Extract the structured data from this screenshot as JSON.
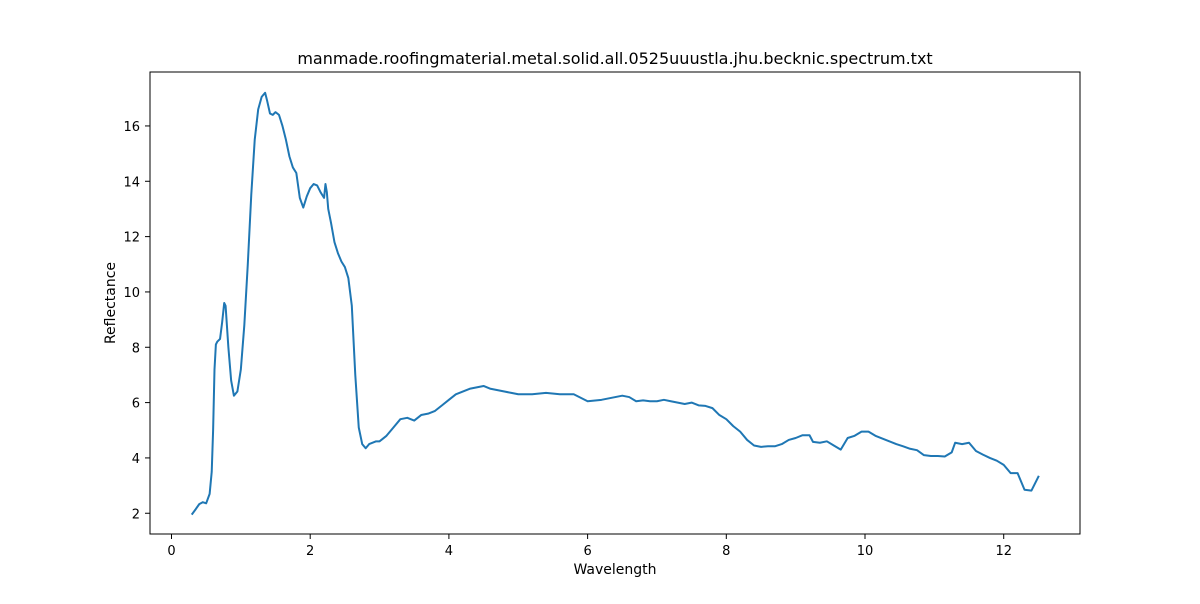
{
  "chart_data": {
    "type": "line",
    "title": "manmade.roofingmaterial.metal.solid.all.0525uuustla.jhu.becknic.spectrum.txt",
    "xlabel": "Wavelength",
    "ylabel": "Reflectance",
    "xlim": [
      -0.31,
      13.1
    ],
    "ylim": [
      1.25,
      17.95
    ],
    "xticks": [
      0,
      2,
      4,
      6,
      8,
      10,
      12
    ],
    "yticks": [
      2,
      4,
      6,
      8,
      10,
      12,
      14,
      16
    ],
    "grid": false,
    "series": [
      {
        "color": "#1f77b4",
        "x": [
          0.3,
          0.35,
          0.4,
          0.45,
          0.5,
          0.55,
          0.58,
          0.6,
          0.62,
          0.64,
          0.66,
          0.7,
          0.73,
          0.76,
          0.78,
          0.82,
          0.86,
          0.9,
          0.95,
          1.0,
          1.05,
          1.1,
          1.15,
          1.2,
          1.25,
          1.3,
          1.35,
          1.38,
          1.42,
          1.46,
          1.5,
          1.55,
          1.6,
          1.65,
          1.7,
          1.75,
          1.8,
          1.85,
          1.9,
          1.95,
          2.0,
          2.05,
          2.1,
          2.15,
          2.2,
          2.22,
          2.24,
          2.26,
          2.3,
          2.35,
          2.4,
          2.45,
          2.5,
          2.55,
          2.6,
          2.65,
          2.7,
          2.75,
          2.8,
          2.85,
          2.9,
          2.95,
          3.0,
          3.1,
          3.2,
          3.3,
          3.4,
          3.5,
          3.6,
          3.7,
          3.8,
          3.9,
          4.0,
          4.1,
          4.2,
          4.3,
          4.4,
          4.5,
          4.6,
          4.7,
          4.8,
          4.9,
          5.0,
          5.2,
          5.4,
          5.6,
          5.8,
          6.0,
          6.2,
          6.4,
          6.5,
          6.6,
          6.7,
          6.8,
          6.9,
          7.0,
          7.1,
          7.2,
          7.3,
          7.4,
          7.5,
          7.6,
          7.7,
          7.8,
          7.9,
          8.0,
          8.1,
          8.2,
          8.3,
          8.4,
          8.5,
          8.6,
          8.7,
          8.8,
          8.9,
          9.0,
          9.1,
          9.2,
          9.25,
          9.35,
          9.45,
          9.55,
          9.65,
          9.75,
          9.85,
          9.95,
          10.05,
          10.15,
          10.25,
          10.35,
          10.45,
          10.55,
          10.65,
          10.75,
          10.85,
          10.95,
          11.05,
          11.15,
          11.25,
          11.3,
          11.4,
          11.5,
          11.6,
          11.7,
          11.8,
          11.9,
          12.0,
          12.1,
          12.2,
          12.3,
          12.4,
          12.5
        ],
        "y": [
          1.98,
          2.15,
          2.33,
          2.4,
          2.36,
          2.7,
          3.5,
          5.0,
          7.2,
          8.1,
          8.2,
          8.3,
          8.9,
          9.6,
          9.5,
          8.0,
          6.8,
          6.25,
          6.4,
          7.2,
          8.8,
          11.0,
          13.5,
          15.5,
          16.6,
          17.05,
          17.2,
          16.9,
          16.45,
          16.4,
          16.5,
          16.4,
          16.0,
          15.5,
          14.9,
          14.5,
          14.3,
          13.4,
          13.05,
          13.45,
          13.75,
          13.9,
          13.85,
          13.6,
          13.4,
          13.9,
          13.6,
          13.0,
          12.5,
          11.8,
          11.4,
          11.1,
          10.9,
          10.5,
          9.5,
          7.0,
          5.1,
          4.5,
          4.35,
          4.5,
          4.55,
          4.6,
          4.6,
          4.8,
          5.1,
          5.4,
          5.45,
          5.35,
          5.55,
          5.6,
          5.7,
          5.9,
          6.1,
          6.3,
          6.4,
          6.5,
          6.55,
          6.6,
          6.5,
          6.45,
          6.4,
          6.35,
          6.3,
          6.3,
          6.35,
          6.3,
          6.3,
          6.05,
          6.1,
          6.2,
          6.25,
          6.2,
          6.05,
          6.08,
          6.05,
          6.05,
          6.1,
          6.05,
          6.0,
          5.95,
          6.0,
          5.9,
          5.88,
          5.8,
          5.55,
          5.4,
          5.15,
          4.95,
          4.65,
          4.45,
          4.4,
          4.42,
          4.42,
          4.5,
          4.65,
          4.72,
          4.82,
          4.82,
          4.58,
          4.55,
          4.6,
          4.45,
          4.3,
          4.72,
          4.8,
          4.95,
          4.95,
          4.8,
          4.7,
          4.6,
          4.5,
          4.42,
          4.33,
          4.28,
          4.1,
          4.07,
          4.07,
          4.05,
          4.2,
          4.55,
          4.5,
          4.55,
          4.25,
          4.12,
          4.0,
          3.9,
          3.75,
          3.45,
          3.45,
          2.85,
          2.82,
          3.32
        ]
      }
    ]
  }
}
